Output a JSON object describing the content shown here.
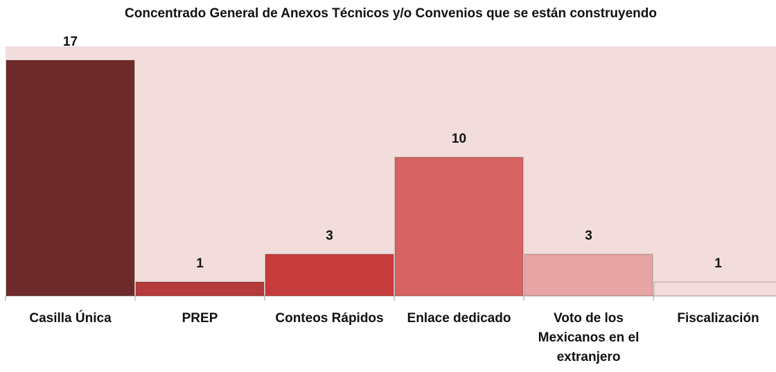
{
  "chart_data": {
    "type": "bar",
    "title": "Concentrado General de Anexos Técnicos y/o Convenios que se están construyendo",
    "categories": [
      "Casilla Única",
      "PREP",
      "Conteos Rápidos",
      "Enlace dedicado",
      "Voto de los Mexicanos en el extranjero",
      "Fiscalización"
    ],
    "values": [
      17,
      1,
      3,
      10,
      3,
      1
    ],
    "colors": [
      "#6e2a2a",
      "#b53a3a",
      "#c63c3c",
      "#d66262",
      "#e6a4a4",
      "#f6dcdc"
    ],
    "ylim": [
      0,
      18
    ]
  }
}
